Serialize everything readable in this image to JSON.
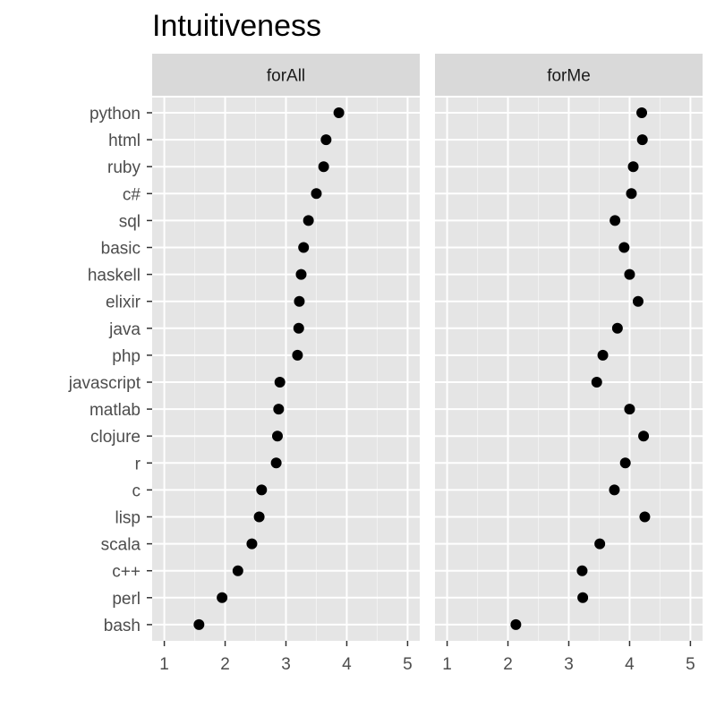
{
  "chart_data": {
    "type": "scatter",
    "title": "Intuitiveness",
    "xlabel": "",
    "ylabel": "",
    "xlim": [
      0.8,
      5.2
    ],
    "x_ticks": [
      1,
      2,
      3,
      4,
      5
    ],
    "grid": true,
    "legend": "none",
    "categories": [
      "python",
      "html",
      "ruby",
      "c#",
      "sql",
      "basic",
      "haskell",
      "elixir",
      "java",
      "php",
      "javascript",
      "matlab",
      "clojure",
      "r",
      "c",
      "lisp",
      "scala",
      "c++",
      "perl",
      "bash"
    ],
    "panels": [
      {
        "name": "forAll",
        "values": [
          3.87,
          3.66,
          3.62,
          3.5,
          3.37,
          3.29,
          3.25,
          3.22,
          3.21,
          3.19,
          2.9,
          2.88,
          2.86,
          2.84,
          2.6,
          2.56,
          2.44,
          2.21,
          1.95,
          1.57
        ]
      },
      {
        "name": "forMe",
        "values": [
          4.2,
          4.21,
          4.06,
          4.03,
          3.76,
          3.91,
          4.0,
          4.14,
          3.8,
          3.56,
          3.46,
          4.0,
          4.23,
          3.93,
          3.75,
          4.25,
          3.51,
          3.22,
          3.23,
          2.13
        ]
      }
    ]
  },
  "colors": {
    "panel_bg": "#e5e5e5",
    "grid": "#ffffff",
    "strip_bg": "#d9d9d9",
    "point": "#000000"
  }
}
